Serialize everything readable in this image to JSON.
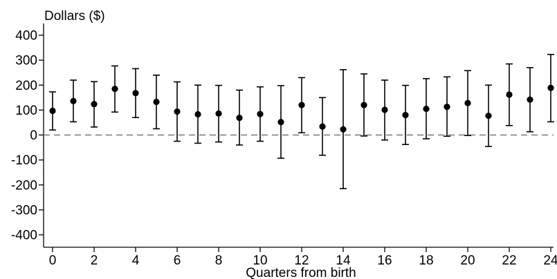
{
  "chart_data": {
    "type": "scatter",
    "title": "",
    "ylabel": "Dollars ($)",
    "xlabel": "Quarters from birth",
    "xlim": [
      -0.5,
      24.2
    ],
    "ylim": [
      -430,
      430
    ],
    "x_ticks": [
      0,
      2,
      4,
      6,
      8,
      10,
      12,
      14,
      16,
      18,
      20,
      22,
      24
    ],
    "y_ticks": [
      -400,
      -300,
      -200,
      -100,
      0,
      100,
      200,
      300,
      400
    ],
    "reference_line": {
      "y": 0,
      "style": "dashed"
    },
    "grid": false,
    "marker_color": "#000000",
    "points": [
      {
        "x": 0,
        "y": 97,
        "low": 20,
        "high": 173
      },
      {
        "x": 1,
        "y": 136,
        "low": 53,
        "high": 220
      },
      {
        "x": 2,
        "y": 124,
        "low": 32,
        "high": 214
      },
      {
        "x": 3,
        "y": 185,
        "low": 92,
        "high": 277
      },
      {
        "x": 4,
        "y": 168,
        "low": 70,
        "high": 266
      },
      {
        "x": 5,
        "y": 133,
        "low": 25,
        "high": 240
      },
      {
        "x": 6,
        "y": 94,
        "low": -25,
        "high": 213
      },
      {
        "x": 7,
        "y": 83,
        "low": -33,
        "high": 200
      },
      {
        "x": 8,
        "y": 86,
        "low": -28,
        "high": 199
      },
      {
        "x": 9,
        "y": 69,
        "low": -40,
        "high": 180
      },
      {
        "x": 10,
        "y": 84,
        "low": -25,
        "high": 193
      },
      {
        "x": 11,
        "y": 52,
        "low": -93,
        "high": 198
      },
      {
        "x": 12,
        "y": 120,
        "low": 9,
        "high": 230
      },
      {
        "x": 13,
        "y": 34,
        "low": -81,
        "high": 150
      },
      {
        "x": 14,
        "y": 23,
        "low": -215,
        "high": 262
      },
      {
        "x": 15,
        "y": 120,
        "low": -4,
        "high": 245
      },
      {
        "x": 16,
        "y": 101,
        "low": -20,
        "high": 220
      },
      {
        "x": 17,
        "y": 80,
        "low": -38,
        "high": 199
      },
      {
        "x": 18,
        "y": 105,
        "low": -15,
        "high": 226
      },
      {
        "x": 19,
        "y": 113,
        "low": -5,
        "high": 233
      },
      {
        "x": 20,
        "y": 128,
        "low": -2,
        "high": 258
      },
      {
        "x": 21,
        "y": 77,
        "low": -46,
        "high": 200
      },
      {
        "x": 22,
        "y": 162,
        "low": 38,
        "high": 285
      },
      {
        "x": 23,
        "y": 142,
        "low": 13,
        "high": 270
      },
      {
        "x": 24,
        "y": 189,
        "low": 53,
        "high": 323
      }
    ]
  }
}
